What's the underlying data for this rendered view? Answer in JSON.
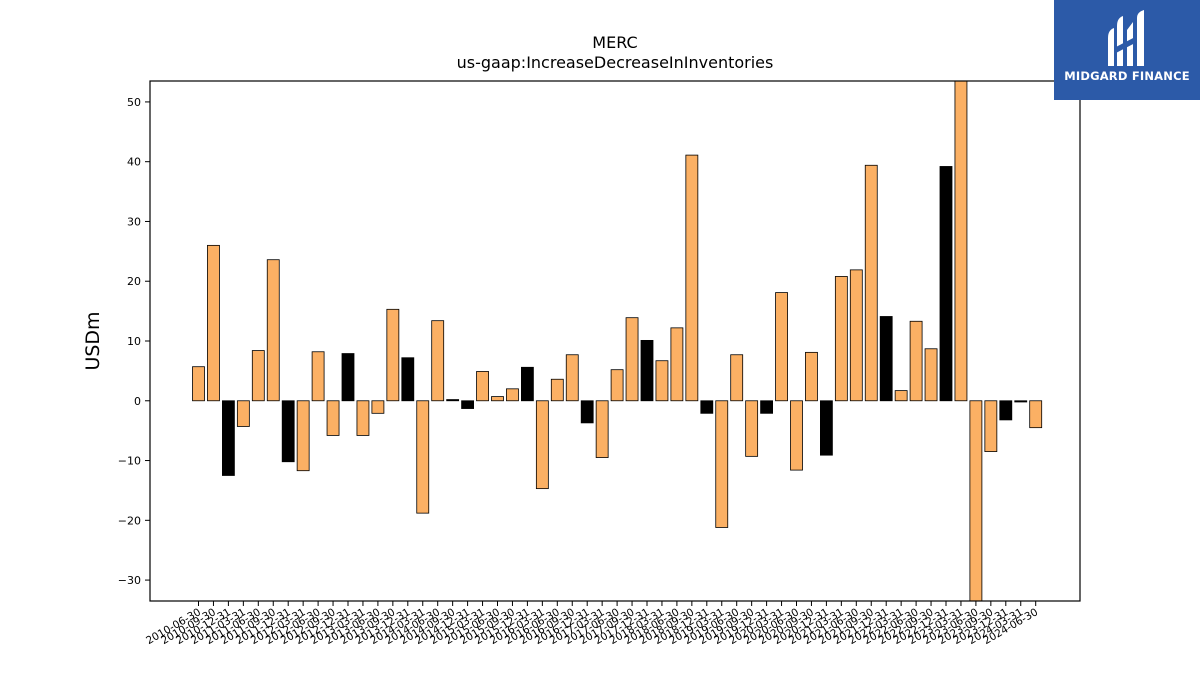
{
  "logo": {
    "text": "MIDGARD FINANCE",
    "icon": "midgard-logo-icon",
    "background": "#2c5aa8"
  },
  "chart_data": {
    "type": "bar",
    "title": "MERC",
    "subtitle": "us-gaap:IncreaseDecreaseInInventories",
    "ylabel": "USDm",
    "xlabel": "",
    "ylim": [
      -33.5,
      53.5
    ],
    "yticks": [
      -30,
      -20,
      -10,
      0,
      10,
      20,
      30,
      40,
      50
    ],
    "grid": false,
    "colors": {
      "default": "#fbb064",
      "highlight": "#000000",
      "edge": "#000000"
    },
    "categories": [
      "2010-06-30",
      "2010-09-30",
      "2010-12-31",
      "2011-03-31",
      "2011-06-30",
      "2011-09-30",
      "2011-12-31",
      "2012-03-31",
      "2012-06-30",
      "2012-09-30",
      "2012-12-31",
      "2013-03-31",
      "2013-06-30",
      "2013-09-30",
      "2013-12-31",
      "2014-03-31",
      "2014-06-30",
      "2014-09-30",
      "2014-12-31",
      "2015-03-31",
      "2015-06-30",
      "2015-09-30",
      "2015-12-31",
      "2016-03-31",
      "2016-06-30",
      "2016-09-30",
      "2016-12-31",
      "2017-03-31",
      "2017-06-30",
      "2017-09-30",
      "2017-12-31",
      "2018-03-31",
      "2018-06-30",
      "2018-09-30",
      "2018-12-31",
      "2019-03-31",
      "2019-06-30",
      "2019-09-30",
      "2019-12-31",
      "2020-03-31",
      "2020-06-30",
      "2020-09-30",
      "2020-12-31",
      "2021-03-31",
      "2021-06-30",
      "2021-09-30",
      "2021-12-31",
      "2022-03-31",
      "2022-06-30",
      "2022-09-30",
      "2022-12-31",
      "2023-03-31",
      "2023-06-30",
      "2023-09-30",
      "2023-12-31",
      "2024-03-31",
      "2024-06-30"
    ],
    "xtick_labels": [
      "2010-06-30",
      "2010-09-30",
      "2010-12-31",
      "2011-03-31",
      "2011-06-30",
      "2011-09-30",
      "2011-12-31",
      "2012-03-31",
      "2012-06-30",
      "2012-09-30",
      "2012-12-31",
      "2013-03-31",
      "2013-06-30",
      "2013-09-30",
      "2013-12-31",
      "2014-03-31",
      "2014-06-30",
      "2014-09-30",
      "2014-12-31",
      "2015-03-31",
      "2015-06-30",
      "2015-09-30",
      "2015-12-31",
      "2016-03-31",
      "2016-06-30",
      "2016-09-30",
      "2016-12-31",
      "2017-03-31",
      "2017-06-30",
      "2017-09-30",
      "2017-12-31",
      "2018-03-31",
      "2018-06-30",
      "2018-09-30",
      "2018-12-31",
      "2019-03-31",
      "2019-06-30",
      "2019-09-30",
      "2019-12-31",
      "2020-03-31",
      "2020-06-30",
      "2020-09-30",
      "2020-12-31",
      "2021-03-31",
      "2021-06-30",
      "2021-09-30",
      "2021-12-31",
      "2022-03-31",
      "2022-06-30",
      "2022-09-30",
      "2022-12-31",
      "2023-03-31",
      "2023-06-30",
      "2023-09-30",
      "2023-12-31",
      "2024-03-31",
      "2024-06-30"
    ],
    "values": [
      5.7,
      26.0,
      -12.5,
      -4.3,
      8.4,
      23.6,
      -10.2,
      -11.7,
      8.2,
      -5.8,
      7.9,
      -5.8,
      -2.1,
      15.3,
      7.2,
      -18.8,
      13.4,
      0.2,
      -1.3,
      4.9,
      0.7,
      2.0,
      5.6,
      -14.7,
      3.6,
      7.7,
      -3.7,
      -9.5,
      5.2,
      13.9,
      10.1,
      6.7,
      12.2,
      41.1,
      -2.1,
      -21.2,
      7.7,
      -9.3,
      -2.1,
      18.1,
      -11.6,
      8.1,
      -9.1,
      20.8,
      21.9,
      39.4,
      14.1,
      1.7,
      13.3,
      8.7,
      39.2,
      53.5,
      -33.5,
      -8.5,
      -3.2,
      -0.2,
      -4.5
    ],
    "highlight": [
      false,
      false,
      true,
      false,
      false,
      false,
      true,
      false,
      false,
      false,
      true,
      false,
      false,
      false,
      true,
      false,
      false,
      true,
      true,
      false,
      false,
      false,
      true,
      false,
      false,
      false,
      true,
      false,
      false,
      false,
      true,
      false,
      false,
      false,
      true,
      false,
      false,
      false,
      true,
      false,
      false,
      false,
      true,
      false,
      false,
      false,
      true,
      false,
      false,
      false,
      true,
      false,
      false,
      false,
      true,
      true,
      false
    ]
  }
}
